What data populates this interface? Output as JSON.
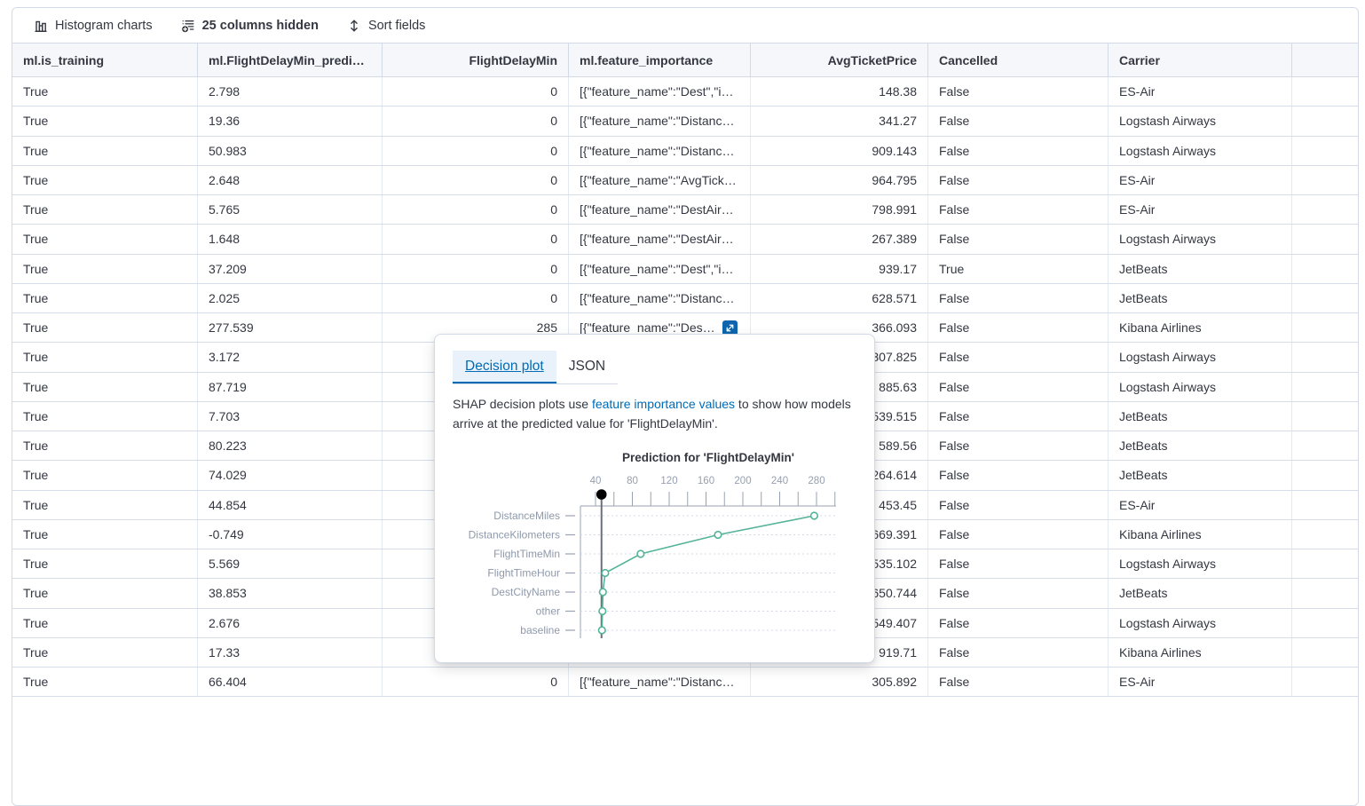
{
  "toolbar": {
    "histogram_label": "Histogram charts",
    "columns_hidden_label": "25 columns hidden",
    "sort_label": "Sort fields"
  },
  "table": {
    "columns": [
      {
        "label": "ml.is_training",
        "align": "left"
      },
      {
        "label": "ml.FlightDelayMin_predi…",
        "align": "left"
      },
      {
        "label": "FlightDelayMin",
        "align": "right"
      },
      {
        "label": "ml.feature_importance",
        "align": "left"
      },
      {
        "label": "AvgTicketPrice",
        "align": "right"
      },
      {
        "label": "Cancelled",
        "align": "left"
      },
      {
        "label": "Carrier",
        "align": "left"
      },
      {
        "label": "",
        "align": "left"
      }
    ],
    "rows": [
      {
        "is_training": "True",
        "prediction": "2.798",
        "flight_delay_min": "0",
        "feature_importance": "[{\"feature_name\":\"Dest\",\"i…",
        "avg_ticket_price": "148.38",
        "cancelled": "False",
        "carrier": "ES-Air",
        "expand": false
      },
      {
        "is_training": "True",
        "prediction": "19.36",
        "flight_delay_min": "0",
        "feature_importance": "[{\"feature_name\":\"Distanc…",
        "avg_ticket_price": "341.27",
        "cancelled": "False",
        "carrier": "Logstash Airways",
        "expand": false
      },
      {
        "is_training": "True",
        "prediction": "50.983",
        "flight_delay_min": "0",
        "feature_importance": "[{\"feature_name\":\"Distanc…",
        "avg_ticket_price": "909.143",
        "cancelled": "False",
        "carrier": "Logstash Airways",
        "expand": false
      },
      {
        "is_training": "True",
        "prediction": "2.648",
        "flight_delay_min": "0",
        "feature_importance": "[{\"feature_name\":\"AvgTick…",
        "avg_ticket_price": "964.795",
        "cancelled": "False",
        "carrier": "ES-Air",
        "expand": false
      },
      {
        "is_training": "True",
        "prediction": "5.765",
        "flight_delay_min": "0",
        "feature_importance": "[{\"feature_name\":\"DestAir…",
        "avg_ticket_price": "798.991",
        "cancelled": "False",
        "carrier": "ES-Air",
        "expand": false
      },
      {
        "is_training": "True",
        "prediction": "1.648",
        "flight_delay_min": "0",
        "feature_importance": "[{\"feature_name\":\"DestAir…",
        "avg_ticket_price": "267.389",
        "cancelled": "False",
        "carrier": "Logstash Airways",
        "expand": false
      },
      {
        "is_training": "True",
        "prediction": "37.209",
        "flight_delay_min": "0",
        "feature_importance": "[{\"feature_name\":\"Dest\",\"i…",
        "avg_ticket_price": "939.17",
        "cancelled": "True",
        "carrier": "JetBeats",
        "expand": false
      },
      {
        "is_training": "True",
        "prediction": "2.025",
        "flight_delay_min": "0",
        "feature_importance": "[{\"feature_name\":\"Distanc…",
        "avg_ticket_price": "628.571",
        "cancelled": "False",
        "carrier": "JetBeats",
        "expand": false
      },
      {
        "is_training": "True",
        "prediction": "277.539",
        "flight_delay_min": "285",
        "feature_importance": "[{\"feature_name\":\"Des…",
        "avg_ticket_price": "366.093",
        "cancelled": "False",
        "carrier": "Kibana Airlines",
        "expand": true
      },
      {
        "is_training": "True",
        "prediction": "3.172",
        "flight_delay_min": "",
        "feature_importance": "",
        "avg_ticket_price": "307.825",
        "cancelled": "False",
        "carrier": "Logstash Airways",
        "expand": false
      },
      {
        "is_training": "True",
        "prediction": "87.719",
        "flight_delay_min": "",
        "feature_importance": "",
        "avg_ticket_price": "885.63",
        "cancelled": "False",
        "carrier": "Logstash Airways",
        "expand": false
      },
      {
        "is_training": "True",
        "prediction": "7.703",
        "flight_delay_min": "",
        "feature_importance": "",
        "avg_ticket_price": "539.515",
        "cancelled": "False",
        "carrier": "JetBeats",
        "expand": false
      },
      {
        "is_training": "True",
        "prediction": "80.223",
        "flight_delay_min": "",
        "feature_importance": "",
        "avg_ticket_price": "589.56",
        "cancelled": "False",
        "carrier": "JetBeats",
        "expand": false
      },
      {
        "is_training": "True",
        "prediction": "74.029",
        "flight_delay_min": "",
        "feature_importance": "",
        "avg_ticket_price": "264.614",
        "cancelled": "False",
        "carrier": "JetBeats",
        "expand": false
      },
      {
        "is_training": "True",
        "prediction": "44.854",
        "flight_delay_min": "",
        "feature_importance": "",
        "avg_ticket_price": "453.45",
        "cancelled": "False",
        "carrier": "ES-Air",
        "expand": false
      },
      {
        "is_training": "True",
        "prediction": "-0.749",
        "flight_delay_min": "",
        "feature_importance": "",
        "avg_ticket_price": "669.391",
        "cancelled": "False",
        "carrier": "Kibana Airlines",
        "expand": false
      },
      {
        "is_training": "True",
        "prediction": "5.569",
        "flight_delay_min": "",
        "feature_importance": "",
        "avg_ticket_price": "535.102",
        "cancelled": "False",
        "carrier": "Logstash Airways",
        "expand": false
      },
      {
        "is_training": "True",
        "prediction": "38.853",
        "flight_delay_min": "",
        "feature_importance": "",
        "avg_ticket_price": "650.744",
        "cancelled": "False",
        "carrier": "JetBeats",
        "expand": false
      },
      {
        "is_training": "True",
        "prediction": "2.676",
        "flight_delay_min": "",
        "feature_importance": "",
        "avg_ticket_price": "549.407",
        "cancelled": "False",
        "carrier": "Logstash Airways",
        "expand": false
      },
      {
        "is_training": "True",
        "prediction": "17.33",
        "flight_delay_min": "",
        "feature_importance": "",
        "avg_ticket_price": "919.71",
        "cancelled": "False",
        "carrier": "Kibana Airlines",
        "expand": false
      },
      {
        "is_training": "True",
        "prediction": "66.404",
        "flight_delay_min": "0",
        "feature_importance": "[{\"feature_name\":\"Distanc…",
        "avg_ticket_price": "305.892",
        "cancelled": "False",
        "carrier": "ES-Air",
        "expand": false
      }
    ]
  },
  "popover": {
    "tabs": [
      {
        "label": "Decision plot",
        "active": true
      },
      {
        "label": "JSON",
        "active": false
      }
    ],
    "description_prefix": "SHAP decision plots use ",
    "description_link": "feature importance values",
    "description_suffix": " to show how models arrive at the predicted value for 'FlightDelayMin'."
  },
  "chart_data": {
    "type": "line",
    "subtype": "shap-decision-plot",
    "title": "Prediction for 'FlightDelayMin'",
    "categories": [
      "DistanceMiles",
      "DistanceKilometers",
      "FlightTimeMin",
      "FlightTimeHour",
      "DestCityName",
      "other",
      "baseline"
    ],
    "values": [
      277.5,
      173,
      89,
      50.5,
      48,
      47.5,
      47
    ],
    "reference_line_x": 46.5,
    "reference_dot_x": 46.5,
    "x_tick_labels": [
      40,
      80,
      120,
      160,
      200,
      240,
      280
    ],
    "x_minor_tick_step": 20,
    "xlim": [
      16,
      301
    ],
    "grid": "dotted-horizontal",
    "legend": "none",
    "colors": {
      "line": "#54B399",
      "marker_fill": "#ffffff",
      "reference_line": "#69707D",
      "reference_dot": "#000000",
      "axis": "#98A2B3",
      "gridline": "#d3dae6",
      "tick_label": "#95a0b2",
      "category_label": "#8e99ab",
      "title": "#343741"
    }
  },
  "icons": {
    "histogram": "bar-chart-icon",
    "columns_hidden": "list-add-icon",
    "sort": "up-down-arrows-icon",
    "expand": "diagonal-expand-arrow-icon"
  },
  "colors": {
    "accent_blue": "#006BB4",
    "expand_button_bg": "#0d65ad",
    "header_bg": "#f5f7fa",
    "border": "#d3dae6",
    "text": "#343741"
  }
}
